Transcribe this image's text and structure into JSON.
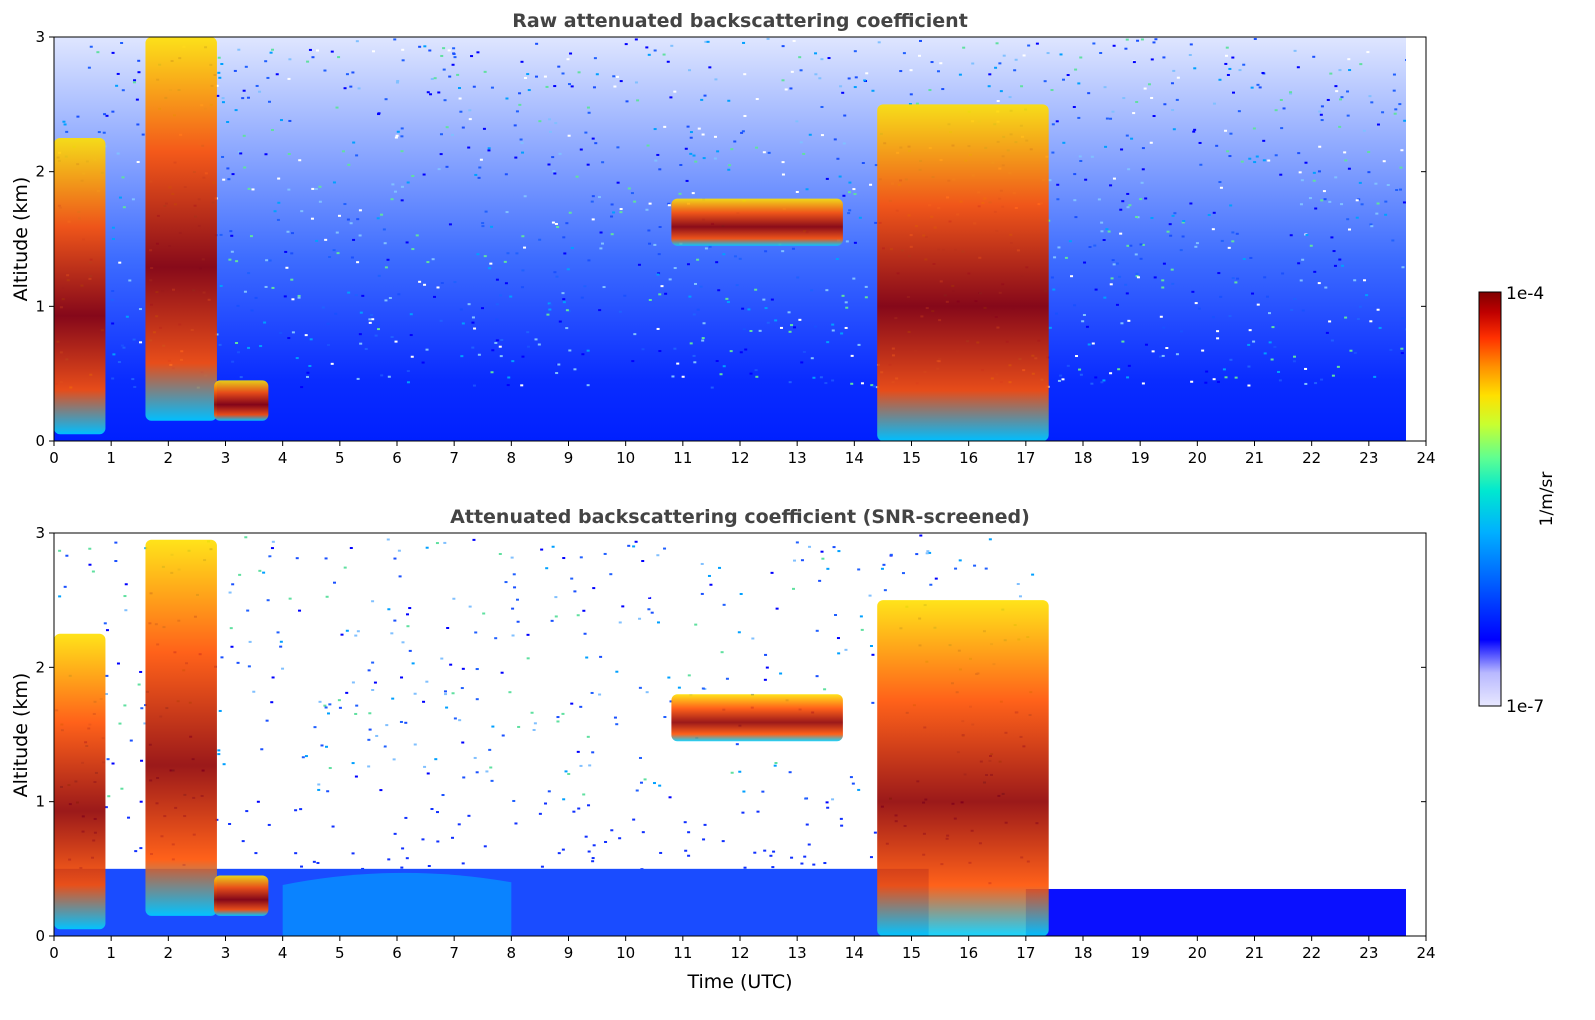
{
  "chart_data": [
    {
      "type": "heatmap",
      "title": "Raw attenuated backscattering coefficient",
      "xlabel": "",
      "ylabel": "Altitude (km)",
      "xlim": [
        0,
        24
      ],
      "ylim": [
        0,
        3
      ],
      "xticks": [
        "0",
        "1",
        "2",
        "3",
        "4",
        "5",
        "6",
        "7",
        "8",
        "9",
        "10",
        "11",
        "12",
        "13",
        "14",
        "15",
        "16",
        "17",
        "18",
        "19",
        "20",
        "21",
        "22",
        "23",
        "24"
      ],
      "yticks": [
        "0",
        "1",
        "2",
        "3"
      ],
      "data_end_time": 23.65,
      "features": [
        {
          "kind": "cloud",
          "t_start": 0.0,
          "t_end": 0.9,
          "alt_top": 2.25,
          "alt_bottom": 0.05
        },
        {
          "kind": "cloud",
          "t_start": 1.6,
          "t_end": 2.85,
          "alt_top": 3.0,
          "alt_bottom": 0.15
        },
        {
          "kind": "cloud",
          "t_start": 2.8,
          "t_end": 3.75,
          "alt_top": 0.45,
          "alt_bottom": 0.15
        },
        {
          "kind": "cloud",
          "t_start": 10.8,
          "t_end": 13.8,
          "alt_top": 1.8,
          "alt_bottom": 1.45
        },
        {
          "kind": "cloud",
          "t_start": 14.4,
          "t_end": 17.4,
          "alt_top": 2.5,
          "alt_bottom": 0.0
        }
      ]
    },
    {
      "type": "heatmap",
      "title": "Attenuated backscattering coefficient (SNR-screened)",
      "xlabel": "Time (UTC)",
      "ylabel": "Altitude (km)",
      "xlim": [
        0,
        24
      ],
      "ylim": [
        0,
        3
      ],
      "xticks": [
        "0",
        "1",
        "2",
        "3",
        "4",
        "5",
        "6",
        "7",
        "8",
        "9",
        "10",
        "11",
        "12",
        "13",
        "14",
        "15",
        "16",
        "17",
        "18",
        "19",
        "20",
        "21",
        "22",
        "23",
        "24"
      ],
      "yticks": [
        "0",
        "1",
        "2",
        "3"
      ],
      "data_end_time": 23.65,
      "features": [
        {
          "kind": "cloud",
          "t_start": 0.0,
          "t_end": 0.9,
          "alt_top": 2.25,
          "alt_bottom": 0.05
        },
        {
          "kind": "cloud",
          "t_start": 1.6,
          "t_end": 2.85,
          "alt_top": 2.95,
          "alt_bottom": 0.15
        },
        {
          "kind": "cloud",
          "t_start": 2.8,
          "t_end": 3.75,
          "alt_top": 0.45,
          "alt_bottom": 0.15
        },
        {
          "kind": "cloud",
          "t_start": 10.8,
          "t_end": 13.8,
          "alt_top": 1.8,
          "alt_bottom": 1.45
        },
        {
          "kind": "cloud",
          "t_start": 14.4,
          "t_end": 17.4,
          "alt_top": 2.5,
          "alt_bottom": 0.0
        },
        {
          "kind": "boundary_layer_top",
          "t_start": 17.0,
          "t_end": 23.65,
          "alt_top": 0.35,
          "alt_bottom": 0.0
        }
      ]
    }
  ],
  "colorbar": {
    "label": "1/m/sr",
    "min_label": "1e-7",
    "max_label": "1e-4",
    "colormap": [
      "#e8e8ff",
      "#b8b8ff",
      "#0000ff",
      "#0060ff",
      "#00b0ff",
      "#00e8d0",
      "#60ff90",
      "#c8ff30",
      "#ffe000",
      "#ff9000",
      "#ff3000",
      "#c00000",
      "#800000"
    ]
  }
}
